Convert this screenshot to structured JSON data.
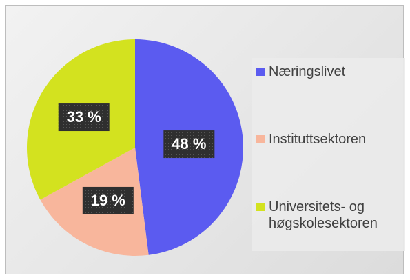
{
  "chart_data": {
    "type": "pie",
    "categories": [
      "Næringslivet",
      "Instituttsektoren",
      "Universitets- og høgskolesektoren"
    ],
    "values": [
      48,
      19,
      33
    ],
    "value_labels": [
      "48 %",
      "19 %",
      "33 %"
    ],
    "colors": [
      "#5b5bf0",
      "#f8b69c",
      "#d3e21f"
    ],
    "legend": "right"
  }
}
